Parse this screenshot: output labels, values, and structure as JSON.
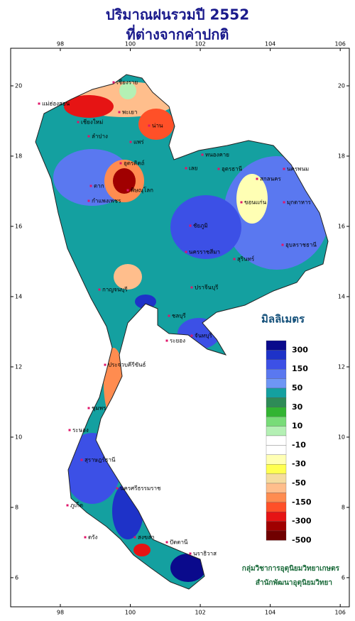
{
  "header": {
    "title_line1": "ปริมาณฝนรวมปี 2552",
    "title_line2": "ที่ต่างจากค่าปกติ"
  },
  "map": {
    "lonlim": [
      96.58,
      106.26
    ],
    "latlim": [
      5.17,
      21.07
    ],
    "lon_ticks": [
      98,
      100,
      102,
      104,
      106
    ],
    "lat_ticks": [
      6,
      8,
      10,
      12,
      14,
      16,
      18,
      20
    ],
    "provinces": [
      "เชียงราย",
      "แม่ฮ่องสอน",
      "เชียงใหม่",
      "พะเยา",
      "น่าน",
      "ลำปาง",
      "แพร่",
      "อุตรดิตถ์",
      "ตาก",
      "พิษณุโลก",
      "กำแพงเพชร",
      "หนองคาย",
      "อุดรธานี",
      "เลย",
      "สกลนคร",
      "นครพนม",
      "ขอนแก่น",
      "มุกดาหาร",
      "ชัยภูมิ",
      "นครราชสีมา",
      "สุรินทร์",
      "อุบลราชธานี",
      "กาญจนบุรี",
      "ปราจีนบุรี",
      "ชลบุรี",
      "ระยอง",
      "จันทบุรี",
      "ประจวบคีรีขันธ์",
      "ชุมพร",
      "ระนอง",
      "สุราษฎร์ธานี",
      "ภูเก็ต",
      "นครศรีธรรมราช",
      "ตรัง",
      "สงขลา",
      "ปัตตานี",
      "นราธิวาส"
    ]
  },
  "legend": {
    "title": "มิลลิเมตร",
    "colors": [
      "#0a0a8c",
      "#1e32c8",
      "#3c50e6",
      "#5a78f0",
      "#6e96f5",
      "#14a0a0",
      "#2e8b57",
      "#32b432",
      "#78dc78",
      "#b4f0b4",
      "#ffffff",
      "#ffffff",
      "#ffffb4",
      "#ffff50",
      "#f5dca0",
      "#ffbe8c",
      "#ff8c50",
      "#ff5028",
      "#e61414",
      "#a00000",
      "#700000"
    ],
    "labels": [
      300,
      150,
      50,
      30,
      10,
      -10,
      -30,
      -50,
      -150,
      -300,
      -500
    ]
  },
  "footer": {
    "line1": "กลุ่มวิชาการอุตุนิยมวิทยาเกษตร",
    "line2": "สำนักพัฒนาอุตุนิยมวิทยา"
  }
}
